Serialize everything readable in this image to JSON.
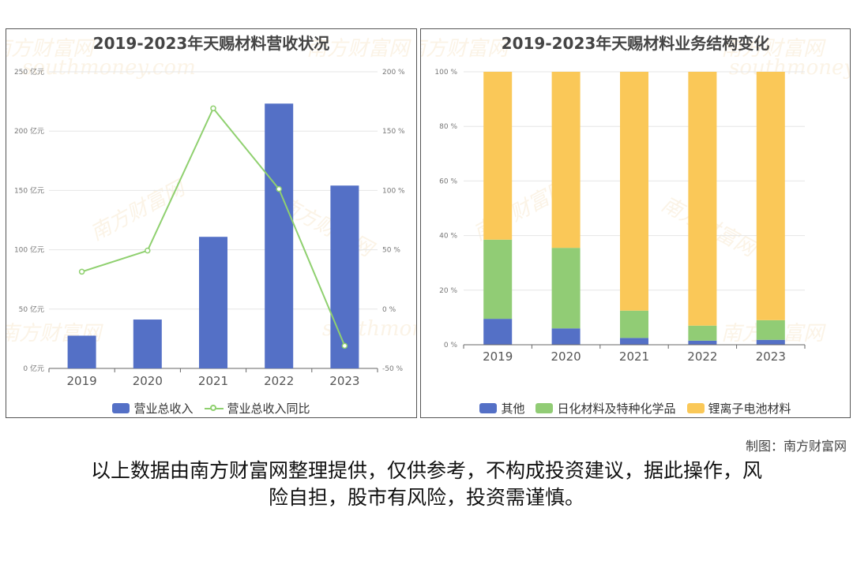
{
  "chart_data": [
    {
      "type": "bar",
      "title": "2019-2023年天赐材料营收状况",
      "categories": [
        "2019",
        "2020",
        "2021",
        "2022",
        "2023"
      ],
      "series": [
        {
          "name": "营业总收入",
          "type": "bar",
          "axis": "left",
          "values": [
            27.6,
            41.2,
            110.9,
            223.2,
            154.1
          ],
          "color": "#5470c6"
        },
        {
          "name": "营业总收入同比",
          "type": "line",
          "axis": "right",
          "values": [
            31.5,
            49.3,
            169.2,
            101.2,
            -30.97
          ],
          "color": "#8fd06f"
        }
      ],
      "left_axis": {
        "ylim": [
          0,
          250
        ],
        "ticks": [
          "0 亿元",
          "50 亿元",
          "100 亿元",
          "150 亿元",
          "200 亿元",
          "250 亿元"
        ]
      },
      "right_axis": {
        "ylim": [
          -50,
          200
        ],
        "ticks": [
          "-50 %",
          "0 %",
          "50 %",
          "100 %",
          "150 %",
          "200 %"
        ]
      },
      "legend": "bottom",
      "grid": true
    },
    {
      "type": "bar",
      "stacked": true,
      "title": "2019-2023年天赐材料业务结构变化",
      "categories": [
        "2019",
        "2020",
        "2021",
        "2022",
        "2023"
      ],
      "series": [
        {
          "name": "其他",
          "values": [
            9.5,
            6.0,
            2.5,
            1.5,
            1.8
          ],
          "color": "#5470c6"
        },
        {
          "name": "日化材料及特种化学品",
          "values": [
            29.0,
            29.5,
            10.0,
            5.5,
            7.2
          ],
          "color": "#91cc75"
        },
        {
          "name": "锂离子电池材料",
          "values": [
            61.5,
            64.5,
            87.5,
            93.0,
            91.0
          ],
          "color": "#fac858"
        }
      ],
      "ylim": [
        0,
        100
      ],
      "ticks": [
        "0 %",
        "20 %",
        "40 %",
        "60 %",
        "80 %",
        "100 %"
      ],
      "legend": "bottom",
      "grid": true
    }
  ],
  "watermark": {
    "cn": "南方财富网",
    "en": "southmoney.com"
  },
  "credit": "制图：南方财富网",
  "disclaimer_line1": "以上数据由南方财富网整理提供，仅供参考，不构成投资建议，据此操作，风",
  "disclaimer_line2": "险自担，股市有风险，投资需谨慎。"
}
